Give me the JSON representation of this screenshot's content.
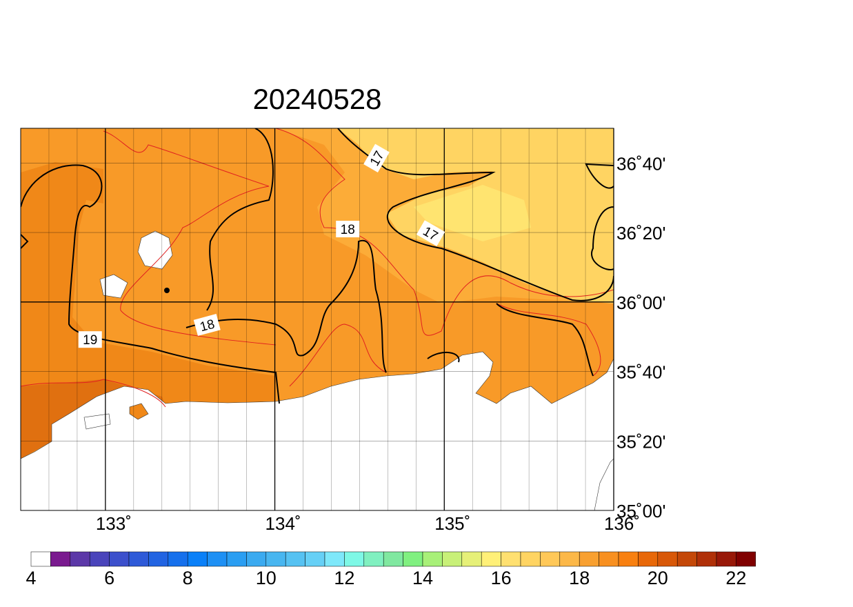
{
  "title": "20240528",
  "map": {
    "xlim": [
      132.5,
      136
    ],
    "ylim": [
      35,
      36.8333
    ],
    "xticks": [
      {
        "value": 133,
        "label": "133˚"
      },
      {
        "value": 134,
        "label": "134˚"
      },
      {
        "value": 135,
        "label": "135˚"
      },
      {
        "value": 136,
        "label": "136˚"
      }
    ],
    "yticks": [
      {
        "value": 35,
        "label": "35˚00'"
      },
      {
        "value": 35.3333,
        "label": "35˚20'"
      },
      {
        "value": 35.6667,
        "label": "35˚40'"
      },
      {
        "value": 36,
        "label": "36˚00'"
      },
      {
        "value": 36.3333,
        "label": "36˚20'"
      },
      {
        "value": 36.6667,
        "label": "36˚40'"
      }
    ],
    "contour_labels": [
      {
        "text": "17",
        "lon": 134.6,
        "lat": 36.69,
        "angle": -60
      },
      {
        "text": "17",
        "lon": 134.92,
        "lat": 36.33,
        "angle": 30
      },
      {
        "text": "18",
        "lon": 134.43,
        "lat": 36.35,
        "angle": 0
      },
      {
        "text": "18",
        "lon": 133.6,
        "lat": 35.89,
        "angle": -15
      },
      {
        "text": "19",
        "lon": 132.91,
        "lat": 35.82,
        "angle": 0
      }
    ]
  },
  "colorbar": {
    "labels": [
      4,
      6,
      8,
      10,
      12,
      14,
      16,
      18,
      20,
      22
    ],
    "colors": [
      "#ffffff",
      "#7a1a8f",
      "#5c38a8",
      "#4a44bb",
      "#3c50cc",
      "#2e5ad8",
      "#2264e2",
      "#1670ec",
      "#0a80f8",
      "#1e90f4",
      "#2a9ef2",
      "#3aaaf0",
      "#48b6f0",
      "#56c2f2",
      "#66d0f6",
      "#7ee8fa",
      "#7ef8e6",
      "#80f0c0",
      "#80e8a0",
      "#80f080",
      "#a8f078",
      "#c8f078",
      "#e6f078",
      "#fff078",
      "#ffe070",
      "#ffd462",
      "#ffc858",
      "#fcb848",
      "#f8a030",
      "#f89020",
      "#f88010",
      "#e86808",
      "#d85808",
      "#c44808",
      "#b03008",
      "#981808",
      "#800000"
    ]
  }
}
